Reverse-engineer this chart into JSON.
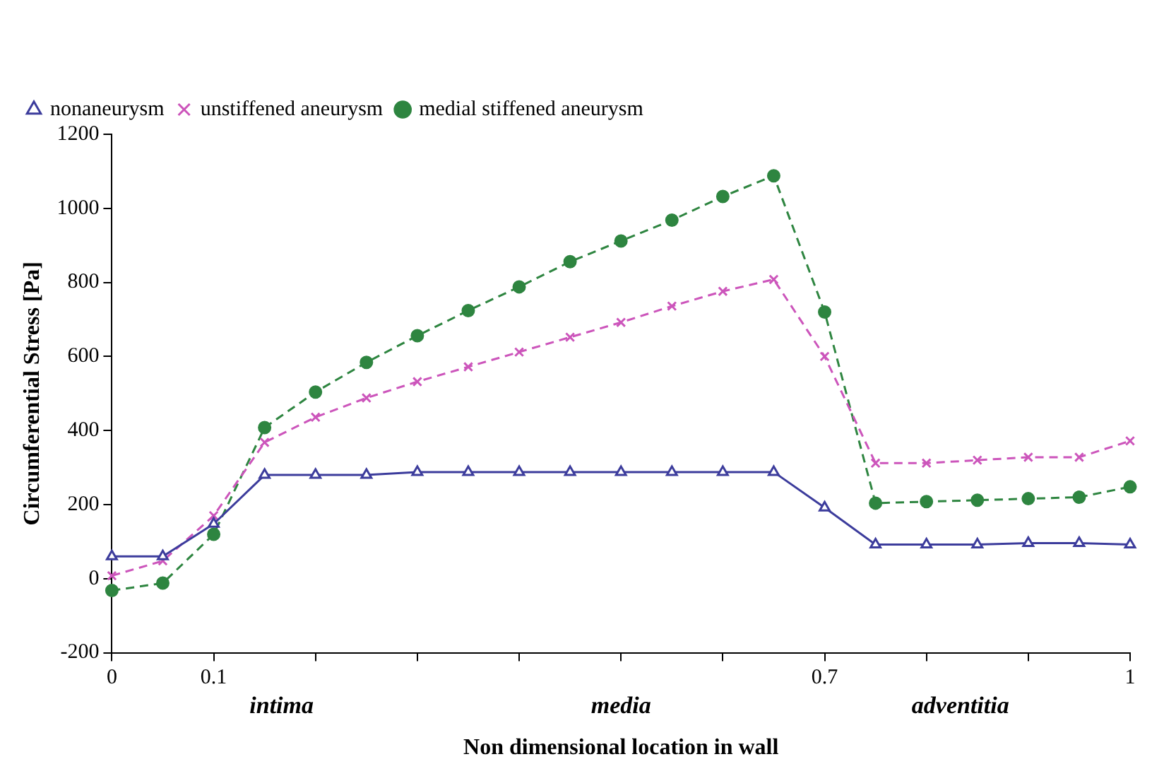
{
  "chart_data": {
    "type": "line",
    "xlabel": "Non dimensional location in wall",
    "ylabel": "Circumferential Stress [Pa]",
    "x": [
      0,
      0.05,
      0.1,
      0.15,
      0.2,
      0.25,
      0.3,
      0.35,
      0.4,
      0.45,
      0.5,
      0.55,
      0.6,
      0.65,
      0.7,
      0.75,
      0.8,
      0.85,
      0.9,
      0.95,
      1
    ],
    "series": [
      {
        "name": "nonaneurysm",
        "color": "#3c3c9c",
        "marker": "triangle",
        "line_style": "solid",
        "values": [
          60,
          60,
          148,
          280,
          280,
          280,
          288,
          288,
          288,
          288,
          288,
          288,
          288,
          288,
          192,
          92,
          92,
          92,
          96,
          96,
          92
        ]
      },
      {
        "name": "unstiffened aneurysm",
        "color": "#cc55bb",
        "marker": "cross",
        "line_style": "dashed",
        "values": [
          8,
          48,
          170,
          368,
          436,
          488,
          532,
          572,
          612,
          652,
          692,
          736,
          776,
          808,
          600,
          312,
          312,
          320,
          328,
          328,
          372
        ]
      },
      {
        "name": "medial stiffened aneurysm",
        "color": "#2e8540",
        "marker": "circle",
        "line_style": "dashed",
        "values": [
          -32,
          -12,
          120,
          408,
          504,
          584,
          656,
          724,
          788,
          856,
          912,
          968,
          1032,
          1088,
          720,
          204,
          208,
          212,
          216,
          220,
          248
        ]
      }
    ],
    "xlim": [
      0,
      1
    ],
    "xticks": [
      0,
      {
        "value": 0.1,
        "label": "0.1"
      },
      {
        "value": 0.2,
        "label": null
      },
      {
        "value": 0.3,
        "label": null
      },
      {
        "value": 0.4,
        "label": null
      },
      {
        "value": 0.5,
        "label": null
      },
      {
        "value": 0.6,
        "label": null
      },
      {
        "value": 0.7,
        "label": "0.7"
      },
      {
        "value": 0.8,
        "label": null
      },
      {
        "value": 0.9,
        "label": null
      },
      1
    ],
    "ylim": [
      -200,
      1200
    ],
    "yticks": [
      -200,
      0,
      200,
      400,
      600,
      800,
      1000,
      1200
    ],
    "grid": false,
    "legend": "top left",
    "annotations": [
      "intima",
      "media",
      "adventitia"
    ]
  }
}
